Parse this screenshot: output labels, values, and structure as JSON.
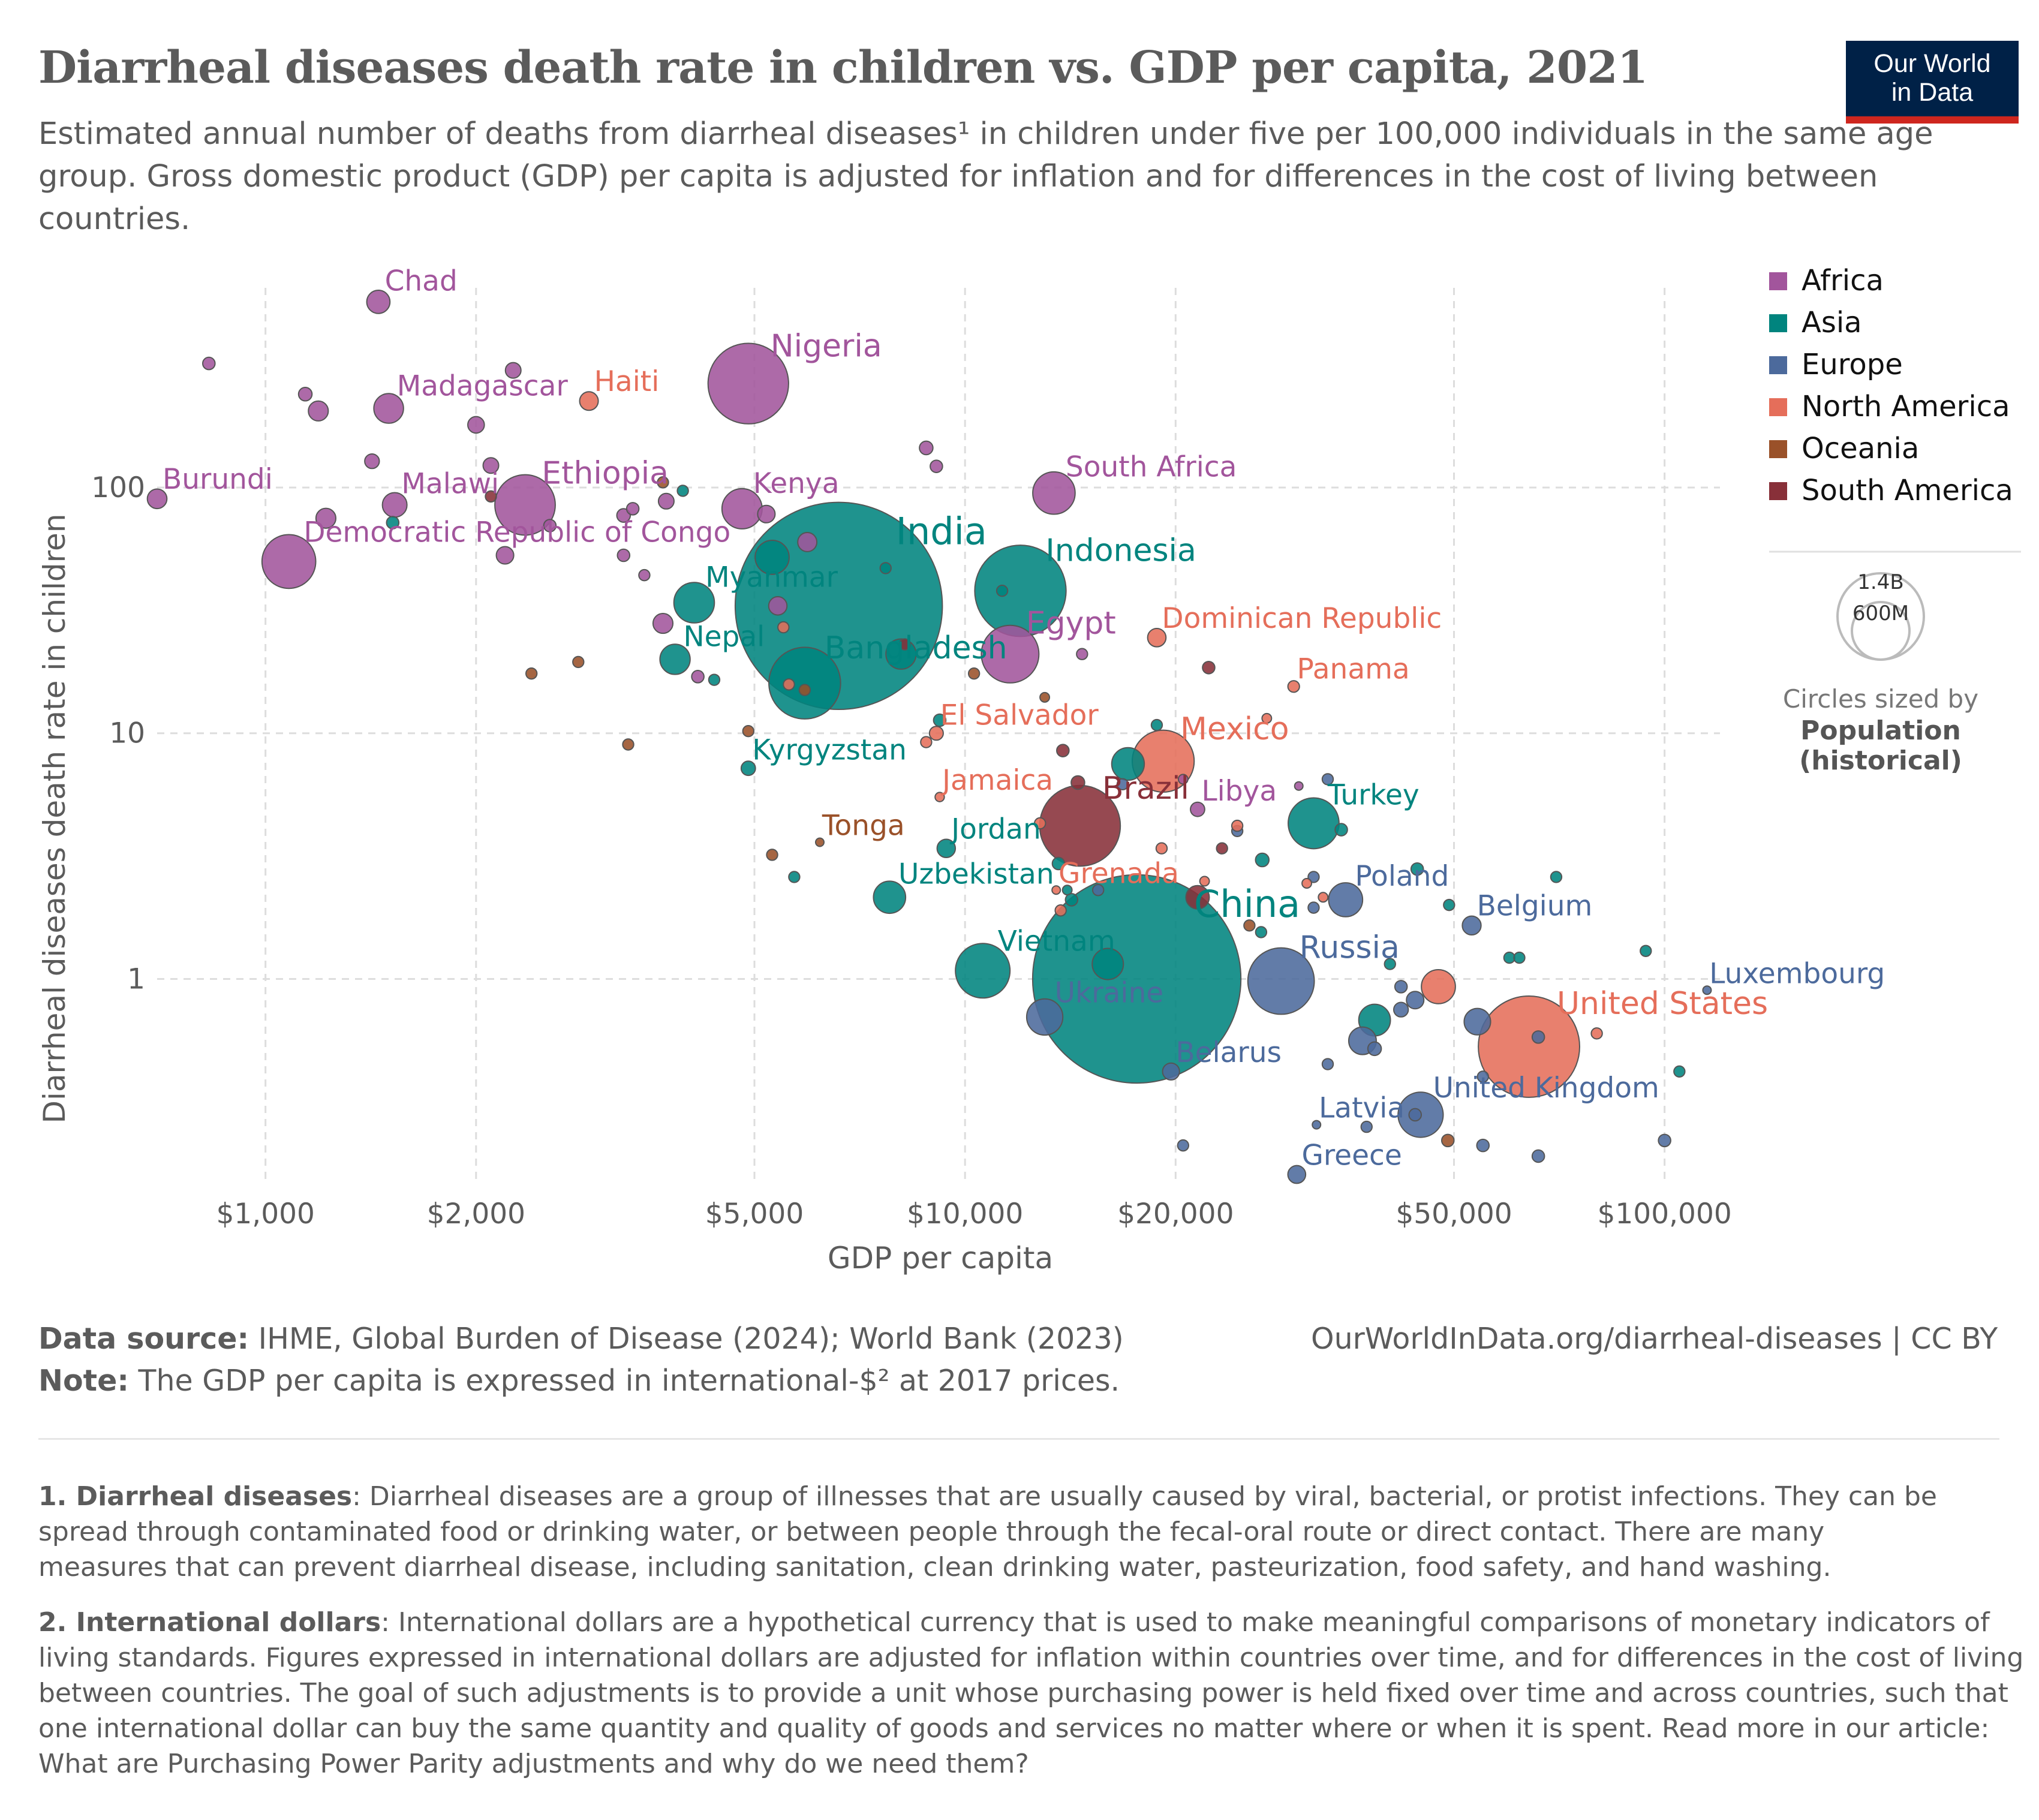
{
  "header": {
    "title": "Diarrheal diseases death rate in children vs. GDP per capita, 2021",
    "subtitle": "Estimated annual number of deaths from diarrheal diseases¹ in children under five per 100,000 individuals in the same age group. Gross domestic product (GDP) per capita is adjusted for inflation and for differences in the cost of living between countries.",
    "logo_line1": "Our World",
    "logo_line2": "in Data"
  },
  "colors": {
    "Africa": "#a2559c",
    "Asia": "#00847e",
    "Europe": "#4c6a9c",
    "North America": "#e56e5a",
    "Oceania": "#9a5129",
    "South America": "#883039"
  },
  "legend": {
    "regions": [
      "Africa",
      "Asia",
      "Europe",
      "North America",
      "Oceania",
      "South America"
    ],
    "size_values": [
      "1.4B",
      "600M"
    ],
    "size_caption": "Circles sized by",
    "size_bold1": "Population",
    "size_bold2": "(historical)"
  },
  "chart_data": {
    "type": "scatter",
    "title": "Diarrheal diseases death rate in children vs. GDP per capita, 2021",
    "xlabel": "GDP per capita",
    "ylabel": "Diarrheal diseases death rate in children",
    "x_scale": "log",
    "y_scale": "log",
    "xlim": [
      700,
      120000
    ],
    "ylim": [
      0.15,
      650
    ],
    "x_ticks": [
      1000,
      2000,
      5000,
      10000,
      20000,
      50000,
      100000
    ],
    "x_tick_labels": [
      "$1,000",
      "$2,000",
      "$5,000",
      "$10,000",
      "$20,000",
      "$50,000",
      "$100,000"
    ],
    "y_ticks": [
      1,
      10,
      100
    ],
    "y_tick_labels": [
      "1",
      "10",
      "100"
    ],
    "grid": true,
    "legend_position": "right",
    "size_by": "Population (historical)",
    "points": [
      {
        "name": "Chad",
        "region": "Africa",
        "x": 1450,
        "y": 570,
        "pop": 17.7
      },
      {
        "name": "Madagascar",
        "region": "Africa",
        "x": 1500,
        "y": 210,
        "pop": 28.9
      },
      {
        "name": "Haiti",
        "region": "North America",
        "x": 2900,
        "y": 225,
        "pop": 11.4
      },
      {
        "name": "Nigeria",
        "region": "Africa",
        "x": 4900,
        "y": 265,
        "pop": 213
      },
      {
        "name": "Burundi",
        "region": "Africa",
        "x": 700,
        "y": 90,
        "pop": 12.6
      },
      {
        "name": "Malawi",
        "region": "Africa",
        "x": 1530,
        "y": 85,
        "pop": 19.9
      },
      {
        "name": "Ethiopia",
        "region": "Africa",
        "x": 2350,
        "y": 85,
        "pop": 120
      },
      {
        "name": "Kenya",
        "region": "Africa",
        "x": 4800,
        "y": 82,
        "pop": 53
      },
      {
        "name": "South Africa",
        "region": "Africa",
        "x": 13400,
        "y": 95,
        "pop": 59
      },
      {
        "name": "Democratic Republic of Congo",
        "region": "Africa",
        "x": 1080,
        "y": 50,
        "pop": 95
      },
      {
        "name": "India",
        "region": "Asia",
        "x": 6600,
        "y": 33,
        "pop": 1410
      },
      {
        "name": "Indonesia",
        "region": "Asia",
        "x": 12000,
        "y": 38,
        "pop": 274
      },
      {
        "name": "Myanmar",
        "region": "Asia",
        "x": 4100,
        "y": 34,
        "pop": 54
      },
      {
        "name": "Egypt",
        "region": "Africa",
        "x": 11600,
        "y": 21,
        "pop": 109
      },
      {
        "name": "Dominican Republic",
        "region": "North America",
        "x": 18800,
        "y": 24.5,
        "pop": 11.1
      },
      {
        "name": "Nepal",
        "region": "Asia",
        "x": 3850,
        "y": 20,
        "pop": 30
      },
      {
        "name": "Bangladesh",
        "region": "Asia",
        "x": 5900,
        "y": 16,
        "pop": 169
      },
      {
        "name": "Panama",
        "region": "North America",
        "x": 29500,
        "y": 15.5,
        "pop": 4.4
      },
      {
        "name": "El Salvador",
        "region": "North America",
        "x": 9100,
        "y": 10,
        "pop": 6.3
      },
      {
        "name": "Mexico",
        "region": "North America",
        "x": 19200,
        "y": 7.7,
        "pop": 126
      },
      {
        "name": "Kyrgyzstan",
        "region": "Asia",
        "x": 4900,
        "y": 7.2,
        "pop": 6.7
      },
      {
        "name": "Jamaica",
        "region": "North America",
        "x": 9200,
        "y": 5.5,
        "pop": 2.8
      },
      {
        "name": "Libya",
        "region": "Africa",
        "x": 21500,
        "y": 4.9,
        "pop": 6.7
      },
      {
        "name": "Brazil",
        "region": "South America",
        "x": 14600,
        "y": 4.2,
        "pop": 214
      },
      {
        "name": "Turkey",
        "region": "Asia",
        "x": 31500,
        "y": 4.3,
        "pop": 85
      },
      {
        "name": "Tonga",
        "region": "Oceania",
        "x": 6200,
        "y": 3.6,
        "pop": 0.1
      },
      {
        "name": "Jordan",
        "region": "Asia",
        "x": 9400,
        "y": 3.4,
        "pop": 11
      },
      {
        "name": "Grenada",
        "region": "North America",
        "x": 13500,
        "y": 2.3,
        "pop": 0.1
      },
      {
        "name": "Uzbekistan",
        "region": "Asia",
        "x": 7800,
        "y": 2.15,
        "pop": 34
      },
      {
        "name": "Poland",
        "region": "Europe",
        "x": 35000,
        "y": 2.1,
        "pop": 38
      },
      {
        "name": "Belgium",
        "region": "Europe",
        "x": 53000,
        "y": 1.65,
        "pop": 11.6
      },
      {
        "name": "China",
        "region": "Asia",
        "x": 17600,
        "y": 1.0,
        "pop": 1425
      },
      {
        "name": "Vietnam",
        "region": "Asia",
        "x": 10600,
        "y": 1.08,
        "pop": 98
      },
      {
        "name": "Russia",
        "region": "Europe",
        "x": 28300,
        "y": 0.98,
        "pop": 145
      },
      {
        "name": "Luxembourg",
        "region": "Europe",
        "x": 115000,
        "y": 0.9,
        "pop": 0.64
      },
      {
        "name": "Ukraine",
        "region": "Europe",
        "x": 13000,
        "y": 0.7,
        "pop": 43
      },
      {
        "name": "United States",
        "region": "North America",
        "x": 64000,
        "y": 0.53,
        "pop": 337
      },
      {
        "name": "Belarus",
        "region": "Europe",
        "x": 19700,
        "y": 0.42,
        "pop": 9.4
      },
      {
        "name": "United Kingdom",
        "region": "Europe",
        "x": 44800,
        "y": 0.28,
        "pop": 67
      },
      {
        "name": "Latvia",
        "region": "Europe",
        "x": 31800,
        "y": 0.255,
        "pop": 1.9
      },
      {
        "name": "Greece",
        "region": "Europe",
        "x": 29800,
        "y": 0.16,
        "pop": 10.4
      },
      {
        "region": "Africa",
        "x": 830,
        "y": 320,
        "pop": 5
      },
      {
        "region": "Africa",
        "x": 1140,
        "y": 240,
        "pop": 6
      },
      {
        "region": "Africa",
        "x": 1190,
        "y": 205,
        "pop": 13
      },
      {
        "region": "Africa",
        "x": 2260,
        "y": 300,
        "pop": 8
      },
      {
        "region": "Africa",
        "x": 2000,
        "y": 180,
        "pop": 9
      },
      {
        "region": "Africa",
        "x": 1420,
        "y": 128,
        "pop": 7
      },
      {
        "region": "Africa",
        "x": 2100,
        "y": 123,
        "pop": 8
      },
      {
        "region": "Africa",
        "x": 8800,
        "y": 145,
        "pop": 6
      },
      {
        "region": "Africa",
        "x": 9100,
        "y": 122,
        "pop": 5
      },
      {
        "region": "Africa",
        "x": 1220,
        "y": 75,
        "pop": 13
      },
      {
        "region": "Africa",
        "x": 2550,
        "y": 70,
        "pop": 5
      },
      {
        "region": "Africa",
        "x": 3250,
        "y": 77,
        "pop": 6
      },
      {
        "region": "Africa",
        "x": 3350,
        "y": 82,
        "pop": 5
      },
      {
        "region": "Africa",
        "x": 3740,
        "y": 88,
        "pop": 8
      },
      {
        "region": "Africa",
        "x": 5200,
        "y": 78,
        "pop": 10
      },
      {
        "region": "Africa",
        "x": 5950,
        "y": 60,
        "pop": 12
      },
      {
        "region": "Africa",
        "x": 3250,
        "y": 53,
        "pop": 5
      },
      {
        "region": "Africa",
        "x": 2200,
        "y": 53,
        "pop": 10
      },
      {
        "region": "Africa",
        "x": 3480,
        "y": 44,
        "pop": 4
      },
      {
        "region": "Africa",
        "x": 5400,
        "y": 33,
        "pop": 11
      },
      {
        "region": "Africa",
        "x": 3700,
        "y": 28,
        "pop": 13
      },
      {
        "region": "Africa",
        "x": 4150,
        "y": 17,
        "pop": 5
      },
      {
        "region": "Africa",
        "x": 14700,
        "y": 21,
        "pop": 4
      },
      {
        "region": "Africa",
        "x": 30000,
        "y": 6.1,
        "pop": 2
      },
      {
        "region": "Africa",
        "x": 20500,
        "y": 6.5,
        "pop": 3
      },
      {
        "region": "Asia",
        "x": 1520,
        "y": 72,
        "pop": 5
      },
      {
        "region": "Asia",
        "x": 3950,
        "y": 97,
        "pop": 4
      },
      {
        "region": "Asia",
        "x": 5300,
        "y": 52,
        "pop": 38
      },
      {
        "region": "Asia",
        "x": 7700,
        "y": 47,
        "pop": 4
      },
      {
        "region": "Asia",
        "x": 11300,
        "y": 38,
        "pop": 4
      },
      {
        "region": "Asia",
        "x": 8100,
        "y": 21,
        "pop": 30
      },
      {
        "region": "Asia",
        "x": 4380,
        "y": 16.5,
        "pop": 4
      },
      {
        "region": "Asia",
        "x": 9200,
        "y": 11.3,
        "pop": 5
      },
      {
        "region": "Asia",
        "x": 18800,
        "y": 10.8,
        "pop": 4
      },
      {
        "region": "Asia",
        "x": 17100,
        "y": 7.5,
        "pop": 35
      },
      {
        "region": "Asia",
        "x": 5700,
        "y": 2.6,
        "pop": 4
      },
      {
        "region": "Asia",
        "x": 13600,
        "y": 2.95,
        "pop": 5
      },
      {
        "region": "Asia",
        "x": 14000,
        "y": 2.3,
        "pop": 3
      },
      {
        "region": "Asia",
        "x": 14200,
        "y": 2.1,
        "pop": 5
      },
      {
        "region": "Asia",
        "x": 26600,
        "y": 3.05,
        "pop": 6
      },
      {
        "region": "Asia",
        "x": 34500,
        "y": 4.05,
        "pop": 5
      },
      {
        "region": "Asia",
        "x": 44300,
        "y": 2.8,
        "pop": 5
      },
      {
        "region": "Asia",
        "x": 49200,
        "y": 2.0,
        "pop": 4
      },
      {
        "region": "Asia",
        "x": 70000,
        "y": 2.6,
        "pop": 4
      },
      {
        "region": "Asia",
        "x": 26500,
        "y": 1.55,
        "pop": 4
      },
      {
        "region": "Asia",
        "x": 16000,
        "y": 1.15,
        "pop": 32
      },
      {
        "region": "Asia",
        "x": 40500,
        "y": 1.15,
        "pop": 4
      },
      {
        "region": "Asia",
        "x": 60000,
        "y": 1.22,
        "pop": 4
      },
      {
        "region": "Asia",
        "x": 62000,
        "y": 1.22,
        "pop": 4
      },
      {
        "region": "Asia",
        "x": 94000,
        "y": 1.3,
        "pop": 4
      },
      {
        "region": "Asia",
        "x": 38500,
        "y": 0.68,
        "pop": 33
      },
      {
        "region": "Asia",
        "x": 105000,
        "y": 0.42,
        "pop": 4
      },
      {
        "region": "Europe",
        "x": 33000,
        "y": 6.5,
        "pop": 4
      },
      {
        "region": "Europe",
        "x": 16800,
        "y": 6.2,
        "pop": 4
      },
      {
        "region": "Europe",
        "x": 24500,
        "y": 4.0,
        "pop": 4
      },
      {
        "region": "Europe",
        "x": 31500,
        "y": 2.6,
        "pop": 4
      },
      {
        "region": "Europe",
        "x": 31500,
        "y": 1.95,
        "pop": 4
      },
      {
        "region": "Europe",
        "x": 15500,
        "y": 2.3,
        "pop": 4
      },
      {
        "region": "Europe",
        "x": 44000,
        "y": 0.82,
        "pop": 10
      },
      {
        "region": "Europe",
        "x": 42000,
        "y": 0.93,
        "pop": 5
      },
      {
        "region": "Europe",
        "x": 54000,
        "y": 0.67,
        "pop": 23
      },
      {
        "region": "Europe",
        "x": 42000,
        "y": 0.75,
        "pop": 7
      },
      {
        "region": "Europe",
        "x": 37000,
        "y": 0.56,
        "pop": 25
      },
      {
        "region": "Europe",
        "x": 38500,
        "y": 0.52,
        "pop": 6
      },
      {
        "region": "Europe",
        "x": 33000,
        "y": 0.45,
        "pop": 4
      },
      {
        "region": "Europe",
        "x": 66000,
        "y": 0.58,
        "pop": 5
      },
      {
        "region": "Europe",
        "x": 55000,
        "y": 0.4,
        "pop": 4
      },
      {
        "region": "Europe",
        "x": 20500,
        "y": 0.21,
        "pop": 4
      },
      {
        "region": "Europe",
        "x": 37500,
        "y": 0.25,
        "pop": 4
      },
      {
        "region": "Europe",
        "x": 44000,
        "y": 0.28,
        "pop": 5
      },
      {
        "region": "Europe",
        "x": 55000,
        "y": 0.21,
        "pop": 5
      },
      {
        "region": "Europe",
        "x": 66000,
        "y": 0.19,
        "pop": 5
      },
      {
        "region": "Europe",
        "x": 100000,
        "y": 0.22,
        "pop": 5
      },
      {
        "region": "North America",
        "x": 5500,
        "y": 27,
        "pop": 4
      },
      {
        "region": "North America",
        "x": 5600,
        "y": 15.8,
        "pop": 4
      },
      {
        "region": "North America",
        "x": 8800,
        "y": 9.2,
        "pop": 4
      },
      {
        "region": "North America",
        "x": 12800,
        "y": 4.3,
        "pop": 4
      },
      {
        "region": "North America",
        "x": 24500,
        "y": 4.2,
        "pop": 4
      },
      {
        "region": "North America",
        "x": 27000,
        "y": 11.5,
        "pop": 3
      },
      {
        "region": "North America",
        "x": 19100,
        "y": 3.4,
        "pop": 4
      },
      {
        "region": "North America",
        "x": 22000,
        "y": 2.5,
        "pop": 3
      },
      {
        "region": "North America",
        "x": 30800,
        "y": 2.45,
        "pop": 3
      },
      {
        "region": "North America",
        "x": 32500,
        "y": 2.15,
        "pop": 3
      },
      {
        "region": "North America",
        "x": 13700,
        "y": 1.9,
        "pop": 4
      },
      {
        "region": "North America",
        "x": 47500,
        "y": 0.93,
        "pop": 38
      },
      {
        "region": "North America",
        "x": 80000,
        "y": 0.6,
        "pop": 4
      },
      {
        "region": "Oceania",
        "x": 3700,
        "y": 105,
        "pop": 4
      },
      {
        "region": "Oceania",
        "x": 2800,
        "y": 19.5,
        "pop": 4
      },
      {
        "region": "Oceania",
        "x": 2400,
        "y": 17.5,
        "pop": 4
      },
      {
        "region": "Oceania",
        "x": 4900,
        "y": 10.2,
        "pop": 4
      },
      {
        "region": "Oceania",
        "x": 3300,
        "y": 9,
        "pop": 4
      },
      {
        "region": "Oceania",
        "x": 5900,
        "y": 15,
        "pop": 4
      },
      {
        "region": "Oceania",
        "x": 10300,
        "y": 17.5,
        "pop": 4
      },
      {
        "region": "Oceania",
        "x": 13000,
        "y": 14,
        "pop": 3
      },
      {
        "region": "Oceania",
        "x": 5300,
        "y": 3.2,
        "pop": 4
      },
      {
        "region": "Oceania",
        "x": 25500,
        "y": 1.65,
        "pop": 4
      },
      {
        "region": "Oceania",
        "x": 49000,
        "y": 0.22,
        "pop": 5
      },
      {
        "region": "South America",
        "x": 2100,
        "y": 92,
        "pop": 4
      },
      {
        "region": "South America",
        "x": 8200,
        "y": 23,
        "pop": 4
      },
      {
        "region": "South America",
        "x": 22300,
        "y": 18.5,
        "pop": 5
      },
      {
        "region": "South America",
        "x": 13800,
        "y": 8.5,
        "pop": 5
      },
      {
        "region": "South America",
        "x": 14500,
        "y": 6.3,
        "pop": 6
      },
      {
        "region": "South America",
        "x": 23300,
        "y": 3.4,
        "pop": 4
      },
      {
        "region": "South America",
        "x": 21500,
        "y": 2.15,
        "pop": 18
      }
    ]
  },
  "footer": {
    "source_label": "Data source:",
    "source_text": " IHME, Global Burden of Disease (2024); World Bank (2023)",
    "note_label": "Note:",
    "note_text": " The GDP per capita is expressed in international-$² at 2017 prices.",
    "url": "OurWorldInData.org/diarrheal-diseases | CC BY"
  },
  "footnotes": [
    {
      "label": "1. Diarrheal diseases",
      "lines": [
        ": Diarrheal diseases are a group of illnesses that are usually caused by viral, bacterial, or protist infections. They can be",
        "spread through contaminated food or drinking water, or between people through the fecal-oral route or direct contact. There are many",
        "measures that can prevent diarrheal disease, including sanitation, clean drinking water, pasteurization, food safety, and hand washing."
      ]
    },
    {
      "label": "2. International dollars",
      "lines": [
        ": International dollars are a hypothetical currency that is used to make meaningful comparisons of monetary indicators of",
        "living standards. Figures expressed in international dollars are adjusted for inflation within countries over time, and for differences in the cost of living",
        "between countries. The goal of such adjustments is to provide a unit whose purchasing power is held fixed over time and across countries, such that",
        "one international dollar can buy the same quantity and quality of goods and services no matter where or when it is spent. Read more in our article:",
        "What are Purchasing Power Parity adjustments and why do we need them?"
      ]
    }
  ]
}
